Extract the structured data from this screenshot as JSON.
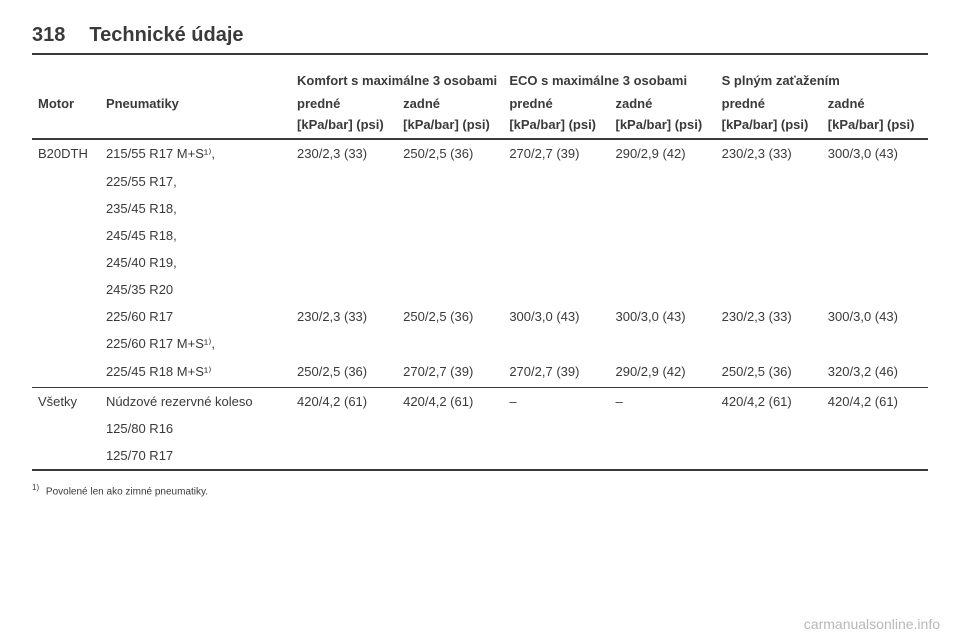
{
  "page_number": "318",
  "section_title": "Technické údaje",
  "header": {
    "group_labels": {
      "comfort": "Komfort s maximálne 3 osobami",
      "eco": "ECO s maximálne 3 osobami",
      "full": "S plným zaťažením"
    },
    "col_motor": "Motor",
    "col_tyres": "Pneumatiky",
    "front": "predné",
    "rear": "zadné",
    "unit": "[kPa/bar] (psi)"
  },
  "rows": [
    {
      "motor": "B20DTH",
      "tyres": [
        "215/55 R17 M+S¹⁾,",
        "225/55 R17,",
        "235/45 R18,",
        "245/45 R18,",
        "245/40 R19,",
        "245/35 R20"
      ],
      "values": [
        "230/2,3 (33)",
        "250/2,5 (36)",
        "270/2,7 (39)",
        "290/2,9 (42)",
        "230/2,3 (33)",
        "300/3,0 (43)"
      ]
    },
    {
      "motor": "",
      "tyres": [
        "225/60 R17",
        "225/60 R17 M+S¹⁾,"
      ],
      "values": [
        "230/2,3 (33)",
        "250/2,5 (36)",
        "300/3,0 (43)",
        "300/3,0 (43)",
        "230/2,3 (33)",
        "300/3,0 (43)"
      ]
    },
    {
      "motor": "",
      "tyres": [
        "225/45 R18 M+S¹⁾"
      ],
      "values": [
        "250/2,5 (36)",
        "270/2,7 (39)",
        "270/2,7 (39)",
        "290/2,9 (42)",
        "250/2,5 (36)",
        "320/3,2 (46)"
      ]
    },
    {
      "motor": "Všetky",
      "tyres": [
        "Núdzové rezervné koleso",
        "125/80 R16",
        "125/70 R17"
      ],
      "values": [
        "420/4,2 (61)",
        "420/4,2 (61)",
        "–",
        "–",
        "420/4,2 (61)",
        "420/4,2 (61)"
      ]
    }
  ],
  "footnote": {
    "marker": "1)",
    "text": "Povolené len ako zimné pneumatiky."
  },
  "watermark": "carmanualsonline.info"
}
